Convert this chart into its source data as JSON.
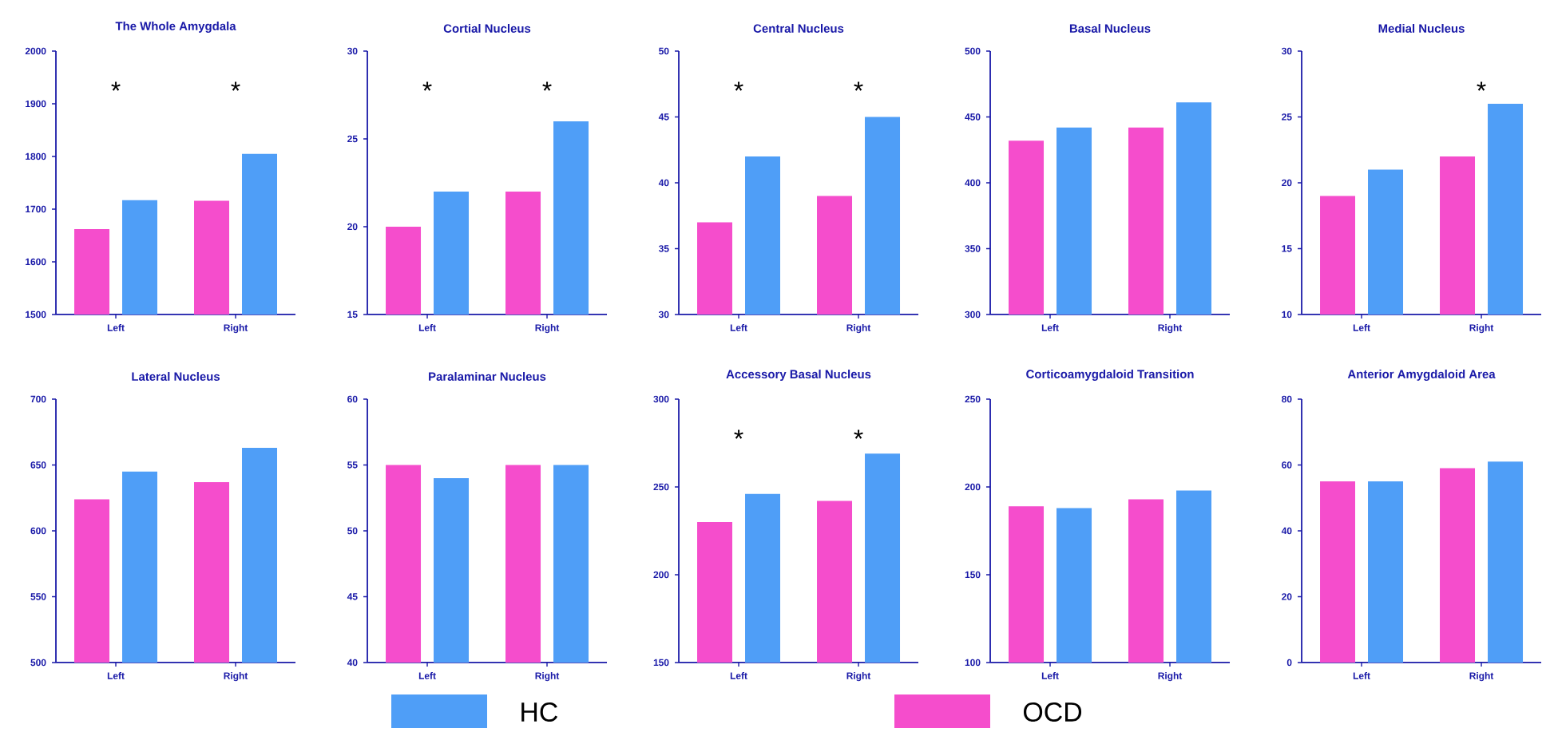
{
  "chart_data": [
    {
      "type": "bar",
      "title": "The Whole Amygdala",
      "categories": [
        "Left",
        "Right"
      ],
      "series": [
        {
          "color": "#f54dcc",
          "values": [
            1662,
            1716
          ]
        },
        {
          "color": "#4f9ef7",
          "values": [
            1717,
            1805
          ]
        }
      ],
      "ylim": [
        1500,
        2000
      ],
      "yticks": [
        1500,
        1600,
        1700,
        1800,
        1900,
        2000
      ],
      "annotations": [
        "*",
        "*"
      ]
    },
    {
      "type": "bar",
      "title": "Cortial Nucleus",
      "categories": [
        "Left",
        "Right"
      ],
      "series": [
        {
          "color": "#f54dcc",
          "values": [
            20,
            22
          ]
        },
        {
          "color": "#4f9ef7",
          "values": [
            22,
            26
          ]
        }
      ],
      "ylim": [
        15,
        30
      ],
      "yticks": [
        15,
        20,
        25,
        30
      ],
      "annotations": [
        "*",
        "*"
      ]
    },
    {
      "type": "bar",
      "title": "Central Nucleus",
      "categories": [
        "Left",
        "Right"
      ],
      "series": [
        {
          "color": "#f54dcc",
          "values": [
            37,
            39
          ]
        },
        {
          "color": "#4f9ef7",
          "values": [
            42,
            45
          ]
        }
      ],
      "ylim": [
        30,
        50
      ],
      "yticks": [
        30,
        35,
        40,
        45,
        50
      ],
      "annotations": [
        "*",
        "*"
      ]
    },
    {
      "type": "bar",
      "title": "Basal Nucleus",
      "categories": [
        "Left",
        "Right"
      ],
      "series": [
        {
          "color": "#f54dcc",
          "values": [
            432,
            442
          ]
        },
        {
          "color": "#4f9ef7",
          "values": [
            442,
            461
          ]
        }
      ],
      "ylim": [
        300,
        500
      ],
      "yticks": [
        300,
        350,
        400,
        450,
        500
      ]
    },
    {
      "type": "bar",
      "title": "Medial Nucleus",
      "categories": [
        "Left",
        "Right"
      ],
      "series": [
        {
          "color": "#f54dcc",
          "values": [
            19,
            22
          ]
        },
        {
          "color": "#4f9ef7",
          "values": [
            21,
            26
          ]
        }
      ],
      "ylim": [
        10,
        30
      ],
      "yticks": [
        10,
        15,
        20,
        25,
        30
      ],
      "annotations": [
        "*"
      ]
    },
    {
      "type": "bar",
      "title": "Lateral Nucleus",
      "categories": [
        "Left",
        "Right"
      ],
      "series": [
        {
          "color": "#f54dcc",
          "values": [
            624,
            637
          ]
        },
        {
          "color": "#4f9ef7",
          "values": [
            645,
            663
          ]
        }
      ],
      "ylim": [
        500,
        700
      ],
      "yticks": [
        500,
        550,
        600,
        650,
        700
      ]
    },
    {
      "type": "bar",
      "title": "Paralaminar Nucleus",
      "categories": [
        "Left",
        "Right"
      ],
      "series": [
        {
          "name": "OCD",
          "color": "#f54dcc",
          "values": [
            55,
            55
          ]
        },
        {
          "name": "HC",
          "color": "#4f9ef7",
          "values": [
            54,
            55
          ]
        }
      ],
      "ylim": [
        40,
        60
      ],
      "yticks": [
        40,
        45,
        50,
        55,
        60
      ],
      "legend": "bottom"
    },
    {
      "type": "bar",
      "title": "Accessory Basal Nucleus",
      "categories": [
        "Left",
        "Right"
      ],
      "series": [
        {
          "color": "#f54dcc",
          "values": [
            230,
            242
          ]
        },
        {
          "color": "#4f9ef7",
          "values": [
            246,
            269
          ]
        }
      ],
      "ylim": [
        150,
        300
      ],
      "yticks": [
        150,
        200,
        250,
        300
      ],
      "annotations": [
        "*",
        "*"
      ]
    },
    {
      "type": "bar",
      "title": "Corticoamygdaloid Transition",
      "categories": [
        "Left",
        "Right"
      ],
      "series": [
        {
          "color": "#f54dcc",
          "values": [
            189,
            193
          ]
        },
        {
          "color": "#4f9ef7",
          "values": [
            188,
            198
          ]
        }
      ],
      "ylim": [
        100,
        250
      ],
      "yticks": [
        100,
        150,
        200,
        250
      ]
    },
    {
      "type": "bar",
      "title": "Anterior Amygdaloid Area",
      "categories": [
        "Left",
        "Right"
      ],
      "series": [
        {
          "color": "#f54dcc",
          "values": [
            55,
            59
          ]
        },
        {
          "color": "#4f9ef7",
          "values": [
            55,
            61
          ]
        }
      ],
      "ylim": [
        0,
        80
      ],
      "yticks": [
        0,
        20,
        40,
        60,
        80
      ]
    }
  ]
}
